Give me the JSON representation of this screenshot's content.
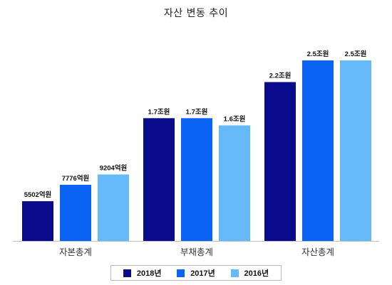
{
  "colors": {
    "s2018": "#0a0a8c",
    "s2017": "#0a63f2",
    "s2016": "#66baf9",
    "axis": "#bfbfbf"
  },
  "chart_data": {
    "type": "bar",
    "title": "자산 변동 추이",
    "categories": [
      "자본총계",
      "부채총계",
      "자산총계"
    ],
    "series": [
      {
        "name": "2018년",
        "values": [
          0.5502,
          1.7,
          2.2
        ],
        "labels": [
          "5502억원",
          "1.7조원",
          "2.2조원"
        ]
      },
      {
        "name": "2017년",
        "values": [
          0.7776,
          1.7,
          2.5
        ],
        "labels": [
          "7776억원",
          "1.7조원",
          "2.5조원"
        ]
      },
      {
        "name": "2016년",
        "values": [
          0.9204,
          1.6,
          2.5
        ],
        "labels": [
          "9204억원",
          "1.6조원",
          "2.5조원"
        ]
      }
    ],
    "grid": false,
    "legend": "bottom"
  }
}
